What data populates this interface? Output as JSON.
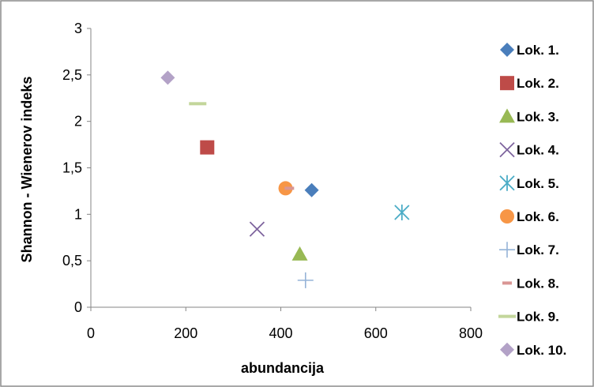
{
  "chart_data": {
    "type": "scatter",
    "xlabel": "abundancija",
    "ylabel": "Shannon - Wienerov indeks",
    "xlim": [
      0,
      800
    ],
    "ylim": [
      0,
      3
    ],
    "x_ticks": [
      "0",
      "200",
      "400",
      "600",
      "800"
    ],
    "y_ticks": [
      "0",
      "0,5",
      "1",
      "1,5",
      "2",
      "2,5",
      "3"
    ],
    "grid": false,
    "legend_position": "right",
    "series": [
      {
        "name": "Lok. 1.",
        "marker": "diamond",
        "color": "#4A7EBB",
        "x": 465,
        "y": 1.26
      },
      {
        "name": "Lok. 2.",
        "marker": "square",
        "color": "#BE4B48",
        "x": 245,
        "y": 1.72
      },
      {
        "name": "Lok. 3.",
        "marker": "triangle",
        "color": "#98B954",
        "x": 440,
        "y": 0.57
      },
      {
        "name": "Lok. 4.",
        "marker": "x",
        "color": "#7E649E",
        "x": 350,
        "y": 0.84
      },
      {
        "name": "Lok. 5.",
        "marker": "asterisk",
        "color": "#4BACC6",
        "x": 655,
        "y": 1.02
      },
      {
        "name": "Lok. 6.",
        "marker": "circle",
        "color": "#F79646",
        "x": 410,
        "y": 1.28
      },
      {
        "name": "Lok. 7.",
        "marker": "plus",
        "color": "#95B3D7",
        "x": 452,
        "y": 0.29
      },
      {
        "name": "Lok. 8.",
        "marker": "dash",
        "color": "#D99694",
        "x": 418,
        "y": 1.28
      },
      {
        "name": "Lok. 9.",
        "marker": "line",
        "color": "#C3D69B",
        "x": 225,
        "y": 2.19
      },
      {
        "name": "Lok. 10.",
        "marker": "diamond",
        "color": "#B3A2C7",
        "x": 162,
        "y": 2.47
      }
    ]
  }
}
